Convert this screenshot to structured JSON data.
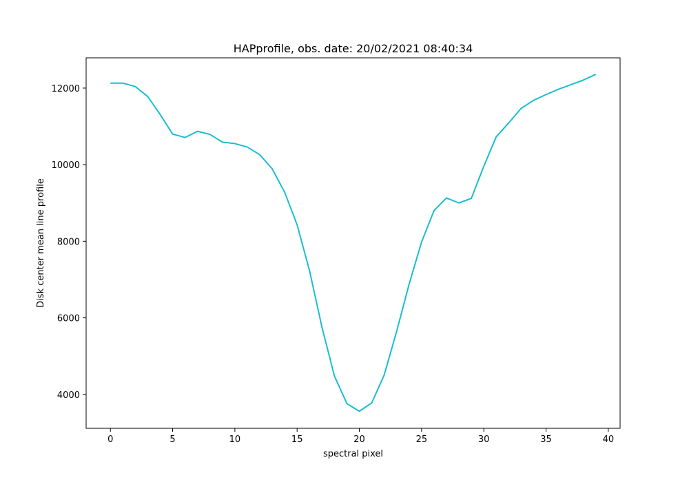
{
  "chart_data": {
    "type": "line",
    "title": "HAPprofile, obs. date: 20/02/2021 08:40:34",
    "xlabel": "spectral pixel",
    "ylabel": "Disk center mean line profile",
    "xlim": [
      -1.95,
      40.95
    ],
    "ylim": [
      3115,
      12790
    ],
    "xticks": [
      0,
      5,
      10,
      15,
      20,
      25,
      30,
      35,
      40
    ],
    "yticks": [
      4000,
      6000,
      8000,
      10000,
      12000
    ],
    "grid": false,
    "line_color": "#17becf",
    "series": [
      {
        "x": [
          0,
          1,
          2,
          3,
          4,
          5,
          6,
          7,
          8,
          9,
          10,
          11,
          12,
          13,
          14,
          15,
          16,
          17,
          18,
          19,
          20,
          21,
          22,
          23,
          24,
          25,
          26,
          27,
          28,
          29,
          30,
          31,
          32,
          33,
          34,
          35,
          36,
          37,
          38,
          39
        ],
        "values": [
          12130,
          12130,
          12040,
          11780,
          11310,
          10800,
          10710,
          10870,
          10790,
          10590,
          10550,
          10460,
          10260,
          9890,
          9280,
          8430,
          7230,
          5750,
          4480,
          3760,
          3560,
          3780,
          4510,
          5650,
          6880,
          7980,
          8800,
          9130,
          9000,
          9120,
          9960,
          10730,
          11090,
          11470,
          11680,
          11830,
          11970,
          12090,
          12210,
          12360
        ]
      }
    ]
  }
}
